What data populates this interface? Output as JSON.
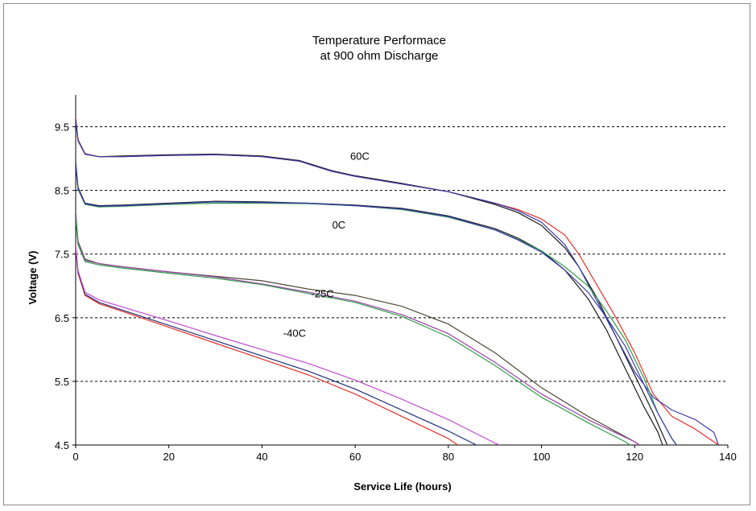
{
  "chart_data": {
    "type": "line",
    "title": "Temperature Performace",
    "subtitle": "at 900 ohm Discharge",
    "xlabel": "Service Life (hours)",
    "ylabel": "Voltage (V)",
    "xlim": [
      0,
      140
    ],
    "ylim": [
      4.5,
      10.0
    ],
    "xticks": [
      0,
      20,
      40,
      60,
      80,
      100,
      120,
      140
    ],
    "yticks": [
      4.5,
      5.5,
      6.5,
      7.5,
      8.5,
      9.5
    ],
    "grid": "horizontal-dashed",
    "legend": "none",
    "groups": [
      {
        "label": "60C",
        "label_at": [
          61,
          8.98
        ],
        "series": [
          {
            "color": "#e8302a",
            "points": [
              [
                0,
                9.65
              ],
              [
                0.5,
                9.3
              ],
              [
                2,
                9.08
              ],
              [
                5,
                9.03
              ],
              [
                10,
                9.03
              ],
              [
                20,
                9.05
              ],
              [
                30,
                9.06
              ],
              [
                40,
                9.03
              ],
              [
                48,
                8.96
              ],
              [
                55,
                8.8
              ],
              [
                60,
                8.72
              ],
              [
                70,
                8.6
              ],
              [
                80,
                8.48
              ],
              [
                90,
                8.3
              ],
              [
                95,
                8.2
              ],
              [
                100,
                8.05
              ],
              [
                105,
                7.8
              ],
              [
                108,
                7.5
              ],
              [
                112,
                7.0
              ],
              [
                116,
                6.5
              ],
              [
                120,
                5.95
              ],
              [
                124,
                5.3
              ],
              [
                128,
                4.95
              ],
              [
                133,
                4.75
              ],
              [
                138,
                4.5
              ]
            ]
          },
          {
            "color": "#1a1a1a",
            "points": [
              [
                0,
                9.6
              ],
              [
                0.5,
                9.28
              ],
              [
                2,
                9.07
              ],
              [
                5,
                9.03
              ],
              [
                10,
                9.04
              ],
              [
                20,
                9.06
              ],
              [
                30,
                9.07
              ],
              [
                40,
                9.04
              ],
              [
                48,
                8.97
              ],
              [
                55,
                8.81
              ],
              [
                60,
                8.73
              ],
              [
                70,
                8.61
              ],
              [
                80,
                8.48
              ],
              [
                90,
                8.28
              ],
              [
                95,
                8.15
              ],
              [
                100,
                7.95
              ],
              [
                105,
                7.6
              ],
              [
                108,
                7.3
              ],
              [
                112,
                6.8
              ],
              [
                116,
                6.2
              ],
              [
                120,
                5.6
              ],
              [
                124,
                5.0
              ],
              [
                127,
                4.5
              ]
            ]
          },
          {
            "color": "#3b3bb0",
            "points": [
              [
                0,
                9.62
              ],
              [
                0.5,
                9.29
              ],
              [
                2,
                9.07
              ],
              [
                5,
                9.03
              ],
              [
                10,
                9.03
              ],
              [
                20,
                9.05
              ],
              [
                30,
                9.06
              ],
              [
                40,
                9.03
              ],
              [
                48,
                8.96
              ],
              [
                55,
                8.8
              ],
              [
                60,
                8.72
              ],
              [
                70,
                8.6
              ],
              [
                80,
                8.48
              ],
              [
                90,
                8.3
              ],
              [
                95,
                8.18
              ],
              [
                100,
                8.0
              ],
              [
                105,
                7.65
              ],
              [
                108,
                7.3
              ],
              [
                112,
                6.75
              ],
              [
                116,
                6.2
              ],
              [
                120,
                5.65
              ],
              [
                124,
                5.25
              ],
              [
                128,
                5.05
              ],
              [
                133,
                4.9
              ],
              [
                137,
                4.7
              ],
              [
                138,
                4.5
              ]
            ]
          }
        ]
      },
      {
        "label": "0C",
        "label_at": [
          56.5,
          7.9
        ],
        "series": [
          {
            "color": "#1a1a1a",
            "points": [
              [
                0,
                8.95
              ],
              [
                0.5,
                8.55
              ],
              [
                2,
                8.3
              ],
              [
                5,
                8.26
              ],
              [
                10,
                8.27
              ],
              [
                20,
                8.3
              ],
              [
                30,
                8.33
              ],
              [
                40,
                8.32
              ],
              [
                50,
                8.3
              ],
              [
                60,
                8.27
              ],
              [
                70,
                8.22
              ],
              [
                80,
                8.1
              ],
              [
                90,
                7.9
              ],
              [
                95,
                7.75
              ],
              [
                100,
                7.55
              ],
              [
                105,
                7.25
              ],
              [
                110,
                6.8
              ],
              [
                114,
                6.3
              ],
              [
                118,
                5.7
              ],
              [
                122,
                5.1
              ],
              [
                125,
                4.7
              ],
              [
                126,
                4.5
              ]
            ]
          },
          {
            "color": "#2f9e48",
            "points": [
              [
                0,
                8.9
              ],
              [
                0.5,
                8.52
              ],
              [
                2,
                8.28
              ],
              [
                5,
                8.24
              ],
              [
                10,
                8.25
              ],
              [
                20,
                8.28
              ],
              [
                30,
                8.3
              ],
              [
                40,
                8.3
              ],
              [
                50,
                8.29
              ],
              [
                60,
                8.26
              ],
              [
                70,
                8.2
              ],
              [
                80,
                8.08
              ],
              [
                90,
                7.88
              ],
              [
                95,
                7.73
              ],
              [
                100,
                7.55
              ],
              [
                105,
                7.3
              ],
              [
                110,
                7.0
              ],
              [
                114,
                6.6
              ],
              [
                118,
                6.15
              ],
              [
                122,
                5.55
              ],
              [
                125,
                5.0
              ],
              [
                128,
                4.6
              ],
              [
                129,
                4.5
              ]
            ]
          },
          {
            "color": "#3b3bb0",
            "points": [
              [
                0,
                8.92
              ],
              [
                0.5,
                8.53
              ],
              [
                2,
                8.29
              ],
              [
                5,
                8.25
              ],
              [
                10,
                8.26
              ],
              [
                20,
                8.29
              ],
              [
                30,
                8.32
              ],
              [
                40,
                8.31
              ],
              [
                50,
                8.3
              ],
              [
                60,
                8.26
              ],
              [
                70,
                8.21
              ],
              [
                80,
                8.09
              ],
              [
                90,
                7.88
              ],
              [
                95,
                7.72
              ],
              [
                100,
                7.53
              ],
              [
                105,
                7.25
              ],
              [
                110,
                6.9
              ],
              [
                114,
                6.5
              ],
              [
                118,
                6.05
              ],
              [
                122,
                5.45
              ],
              [
                125,
                5.0
              ],
              [
                128,
                4.6
              ],
              [
                129,
                4.5
              ]
            ]
          }
        ]
      },
      {
        "label": "-25C",
        "label_at": [
          53,
          6.82
        ],
        "series": [
          {
            "color": "#4d4633",
            "points": [
              [
                0,
                8.15
              ],
              [
                0.5,
                7.7
              ],
              [
                2,
                7.42
              ],
              [
                5,
                7.35
              ],
              [
                10,
                7.3
              ],
              [
                20,
                7.22
              ],
              [
                30,
                7.15
              ],
              [
                40,
                7.08
              ],
              [
                50,
                6.95
              ],
              [
                60,
                6.85
              ],
              [
                70,
                6.68
              ],
              [
                80,
                6.4
              ],
              [
                90,
                5.95
              ],
              [
                100,
                5.4
              ],
              [
                110,
                4.95
              ],
              [
                120,
                4.55
              ],
              [
                121,
                4.5
              ]
            ]
          },
          {
            "color": "#9b3fa8",
            "points": [
              [
                0,
                8.1
              ],
              [
                0.5,
                7.68
              ],
              [
                2,
                7.4
              ],
              [
                5,
                7.35
              ],
              [
                10,
                7.3
              ],
              [
                20,
                7.22
              ],
              [
                30,
                7.14
              ],
              [
                40,
                7.03
              ],
              [
                50,
                6.9
              ],
              [
                60,
                6.76
              ],
              [
                70,
                6.55
              ],
              [
                80,
                6.25
              ],
              [
                90,
                5.8
              ],
              [
                100,
                5.3
              ],
              [
                110,
                4.9
              ],
              [
                120,
                4.55
              ],
              [
                121,
                4.5
              ]
            ]
          },
          {
            "color": "#2f9e48",
            "points": [
              [
                0,
                8.05
              ],
              [
                0.5,
                7.65
              ],
              [
                2,
                7.38
              ],
              [
                5,
                7.33
              ],
              [
                10,
                7.28
              ],
              [
                20,
                7.2
              ],
              [
                30,
                7.12
              ],
              [
                40,
                7.02
              ],
              [
                50,
                6.88
              ],
              [
                60,
                6.74
              ],
              [
                70,
                6.52
              ],
              [
                80,
                6.2
              ],
              [
                90,
                5.75
              ],
              [
                100,
                5.25
              ],
              [
                110,
                4.85
              ],
              [
                118,
                4.55
              ],
              [
                119,
                4.5
              ]
            ]
          }
        ]
      },
      {
        "label": "-40C",
        "label_at": [
          47,
          6.2
        ],
        "series": [
          {
            "color": "#e8302a",
            "points": [
              [
                0,
                7.6
              ],
              [
                0.5,
                7.2
              ],
              [
                2,
                6.85
              ],
              [
                5,
                6.72
              ],
              [
                10,
                6.6
              ],
              [
                20,
                6.35
              ],
              [
                30,
                6.1
              ],
              [
                40,
                5.85
              ],
              [
                50,
                5.6
              ],
              [
                60,
                5.3
              ],
              [
                70,
                4.95
              ],
              [
                80,
                4.6
              ],
              [
                82,
                4.5
              ]
            ]
          },
          {
            "color": "#1f2f7a",
            "points": [
              [
                0,
                7.62
              ],
              [
                0.5,
                7.22
              ],
              [
                2,
                6.87
              ],
              [
                5,
                6.74
              ],
              [
                10,
                6.62
              ],
              [
                20,
                6.38
              ],
              [
                30,
                6.14
              ],
              [
                40,
                5.9
              ],
              [
                50,
                5.66
              ],
              [
                60,
                5.38
              ],
              [
                70,
                5.05
              ],
              [
                80,
                4.72
              ],
              [
                86,
                4.5
              ]
            ]
          },
          {
            "color": "#c04ad0",
            "points": [
              [
                0,
                7.64
              ],
              [
                0.5,
                7.24
              ],
              [
                2,
                6.9
              ],
              [
                5,
                6.78
              ],
              [
                10,
                6.67
              ],
              [
                20,
                6.45
              ],
              [
                30,
                6.22
              ],
              [
                40,
                6.0
              ],
              [
                50,
                5.78
              ],
              [
                60,
                5.52
              ],
              [
                70,
                5.22
              ],
              [
                80,
                4.9
              ],
              [
                90,
                4.53
              ],
              [
                91,
                4.5
              ]
            ]
          }
        ]
      }
    ]
  }
}
